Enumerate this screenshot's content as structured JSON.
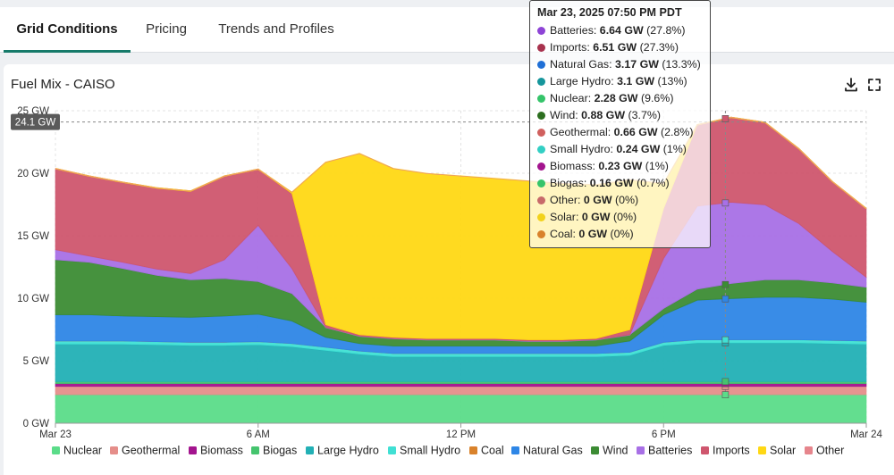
{
  "tabs": [
    {
      "label": "Grid Conditions",
      "active": true
    },
    {
      "label": "Pricing",
      "active": false
    },
    {
      "label": "Trends and Profiles",
      "active": false
    }
  ],
  "card": {
    "title": "Fuel Mix - CAISO",
    "download_icon": "download-icon",
    "fullscreen_icon": "fullscreen-icon"
  },
  "cursor_label": "24.1 GW",
  "tooltip": {
    "title": "Mar 23, 2025 07:50 PM PDT",
    "rows": [
      {
        "name": "Batteries",
        "value": "6.64 GW",
        "pct": "(27.8%)",
        "color": "#8e44d6"
      },
      {
        "name": "Imports",
        "value": "6.51 GW",
        "pct": "(27.3%)",
        "color": "#a8324e"
      },
      {
        "name": "Natural Gas",
        "value": "3.17 GW",
        "pct": "(13.3%)",
        "color": "#1f6fd6"
      },
      {
        "name": "Large Hydro",
        "value": "3.1 GW",
        "pct": "(13%)",
        "color": "#16969c"
      },
      {
        "name": "Nuclear",
        "value": "2.28 GW",
        "pct": "(9.6%)",
        "color": "#35c46a"
      },
      {
        "name": "Wind",
        "value": "0.88 GW",
        "pct": "(3.7%)",
        "color": "#2c6e1f"
      },
      {
        "name": "Geothermal",
        "value": "0.66 GW",
        "pct": "(2.8%)",
        "color": "#d0605e"
      },
      {
        "name": "Small Hydro",
        "value": "0.24 GW",
        "pct": "(1%)",
        "color": "#33cfc4"
      },
      {
        "name": "Biomass",
        "value": "0.23 GW",
        "pct": "(1%)",
        "color": "#a3148e"
      },
      {
        "name": "Biogas",
        "value": "0.16 GW",
        "pct": "(0.7%)",
        "color": "#35c46a"
      },
      {
        "name": "Other",
        "value": "0 GW",
        "pct": "(0%)",
        "color": "#c76a6a"
      },
      {
        "name": "Solar",
        "value": "0 GW",
        "pct": "(0%)",
        "color": "#f2d21b"
      },
      {
        "name": "Coal",
        "value": "0 GW",
        "pct": "(0%)",
        "color": "#d9822b"
      }
    ]
  },
  "chart_data": {
    "type": "area",
    "stacked": true,
    "title": "Fuel Mix - CAISO",
    "x_unit": "hours since Mar 23 00:00",
    "x_ticks": [
      {
        "h": 0,
        "label": "Mar 23"
      },
      {
        "h": 6,
        "label": "6 AM"
      },
      {
        "h": 12,
        "label": "12 PM"
      },
      {
        "h": 18,
        "label": "6 PM"
      },
      {
        "h": 24,
        "label": "Mar 24"
      }
    ],
    "y_ticks": [
      {
        "v": 0,
        "label": "0 GW"
      },
      {
        "v": 5,
        "label": "5 GW"
      },
      {
        "v": 10,
        "label": "10 GW"
      },
      {
        "v": 15,
        "label": "15 GW"
      },
      {
        "v": 20,
        "label": "20 GW"
      },
      {
        "v": 25,
        "label": "25 GW"
      }
    ],
    "ylim": [
      0,
      25
    ],
    "xlim": [
      0,
      24
    ],
    "cursor": {
      "h": 19.83,
      "total": 24.1
    },
    "legend_position": "bottom",
    "x": [
      0,
      1,
      2,
      3,
      4,
      5,
      6,
      7,
      8,
      9,
      10,
      11,
      12,
      13,
      14,
      15,
      16,
      17,
      18,
      19,
      20,
      21,
      22,
      23,
      24
    ],
    "series": [
      {
        "name": "Nuclear",
        "color": "#5bdc89",
        "values": [
          2.28,
          2.28,
          2.28,
          2.28,
          2.28,
          2.28,
          2.28,
          2.28,
          2.28,
          2.28,
          2.28,
          2.28,
          2.28,
          2.28,
          2.28,
          2.28,
          2.28,
          2.28,
          2.28,
          2.28,
          2.28,
          2.28,
          2.28,
          2.28,
          2.28
        ]
      },
      {
        "name": "Geothermal",
        "color": "#e58e8a",
        "values": [
          0.66,
          0.66,
          0.66,
          0.66,
          0.66,
          0.66,
          0.66,
          0.66,
          0.66,
          0.66,
          0.66,
          0.66,
          0.66,
          0.66,
          0.66,
          0.66,
          0.66,
          0.66,
          0.66,
          0.66,
          0.66,
          0.66,
          0.66,
          0.66,
          0.66
        ]
      },
      {
        "name": "Biomass",
        "color": "#a3148e",
        "values": [
          0.23,
          0.23,
          0.23,
          0.23,
          0.23,
          0.23,
          0.23,
          0.23,
          0.23,
          0.23,
          0.23,
          0.23,
          0.23,
          0.23,
          0.23,
          0.23,
          0.23,
          0.23,
          0.23,
          0.23,
          0.23,
          0.23,
          0.23,
          0.23,
          0.23
        ]
      },
      {
        "name": "Biogas",
        "color": "#45c46e",
        "values": [
          0.16,
          0.16,
          0.16,
          0.16,
          0.16,
          0.16,
          0.16,
          0.16,
          0.16,
          0.16,
          0.16,
          0.16,
          0.16,
          0.16,
          0.16,
          0.16,
          0.16,
          0.16,
          0.16,
          0.16,
          0.16,
          0.16,
          0.16,
          0.16,
          0.16
        ]
      },
      {
        "name": "Large Hydro",
        "color": "#22b0b5",
        "values": [
          3.0,
          3.0,
          3.0,
          2.95,
          2.9,
          2.9,
          2.95,
          2.8,
          2.5,
          2.2,
          2.0,
          2.0,
          2.0,
          2.0,
          2.0,
          2.0,
          2.0,
          2.1,
          2.9,
          3.1,
          3.1,
          3.1,
          3.1,
          3.05,
          3.0
        ]
      },
      {
        "name": "Small Hydro",
        "color": "#40e0d4",
        "values": [
          0.24,
          0.24,
          0.24,
          0.24,
          0.24,
          0.24,
          0.24,
          0.24,
          0.24,
          0.24,
          0.24,
          0.24,
          0.24,
          0.24,
          0.24,
          0.24,
          0.24,
          0.24,
          0.24,
          0.24,
          0.24,
          0.24,
          0.24,
          0.24,
          0.24
        ]
      },
      {
        "name": "Coal",
        "color": "#d9822b",
        "values": [
          0,
          0,
          0,
          0,
          0,
          0,
          0,
          0,
          0,
          0,
          0,
          0,
          0,
          0,
          0,
          0,
          0,
          0,
          0,
          0,
          0,
          0,
          0,
          0,
          0
        ]
      },
      {
        "name": "Natural Gas",
        "color": "#2e86e6",
        "values": [
          2.1,
          2.1,
          2.0,
          2.0,
          2.0,
          2.1,
          2.2,
          1.8,
          0.8,
          0.6,
          0.6,
          0.6,
          0.6,
          0.6,
          0.6,
          0.6,
          0.6,
          0.9,
          2.2,
          3.17,
          3.3,
          3.4,
          3.4,
          3.3,
          3.1
        ]
      },
      {
        "name": "Wind",
        "color": "#3c8c34",
        "values": [
          4.4,
          4.2,
          3.8,
          3.3,
          3.0,
          3.0,
          2.6,
          2.2,
          0.8,
          0.6,
          0.6,
          0.5,
          0.5,
          0.5,
          0.4,
          0.4,
          0.5,
          0.5,
          0.5,
          0.88,
          1.2,
          1.4,
          1.4,
          1.3,
          1.2
        ]
      },
      {
        "name": "Batteries",
        "color": "#a870e6",
        "values": [
          0.8,
          0.5,
          0.5,
          0.5,
          0.5,
          1.5,
          4.5,
          2.0,
          0,
          0,
          0,
          0,
          0,
          0,
          0,
          0,
          0,
          0,
          4.0,
          6.64,
          6.5,
          6.0,
          4.5,
          2.5,
          0.8
        ]
      },
      {
        "name": "Imports",
        "color": "#cf566e",
        "values": [
          6.5,
          6.4,
          6.4,
          6.5,
          6.6,
          6.7,
          4.5,
          6.0,
          0.2,
          0.1,
          0.1,
          0.1,
          0.1,
          0.1,
          0.1,
          0.1,
          0.1,
          0.4,
          4.0,
          6.51,
          6.8,
          6.6,
          6.0,
          5.6,
          5.5
        ]
      },
      {
        "name": "Solar",
        "color": "#ffd814",
        "values": [
          0,
          0,
          0,
          0,
          0,
          0,
          0,
          0.1,
          13.0,
          14.5,
          13.5,
          13.2,
          13.0,
          12.8,
          12.7,
          12.5,
          12.3,
          12.0,
          2.0,
          0,
          0,
          0,
          0,
          0,
          0
        ]
      },
      {
        "name": "Other",
        "color": "#e6858c",
        "values": [
          0,
          0,
          0,
          0,
          0,
          0,
          0,
          0,
          0,
          0,
          0,
          0,
          0,
          0,
          0,
          0,
          0,
          0,
          0,
          0,
          0,
          0,
          0,
          0,
          0
        ]
      }
    ]
  }
}
